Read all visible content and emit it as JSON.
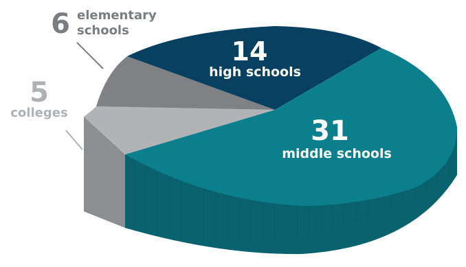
{
  "chart_data": {
    "type": "pie",
    "categories": [
      "high schools",
      "middle schools",
      "colleges",
      "elementary schools"
    ],
    "values": [
      14,
      31,
      5,
      6
    ],
    "labels": {
      "high": {
        "num": "14",
        "text": "high schools"
      },
      "middle": {
        "num": "31",
        "text": "middle schools"
      },
      "colleges": {
        "num": "5",
        "text": "colleges"
      },
      "elementary": {
        "num": "6",
        "line1": "elementary",
        "line2": "schools"
      }
    },
    "colors": {
      "high_top": "#08405f",
      "middle_top": "#0b7f8c",
      "middle_side": "#09636e",
      "elementary_top": "#7f8184",
      "colleges_top": "#b2b3b6",
      "colleges_side": "#8d8e91",
      "label_white": "#ffffff",
      "label_grey_dark": "#7a7c7f",
      "label_grey_light": "#b0b1b4"
    }
  }
}
